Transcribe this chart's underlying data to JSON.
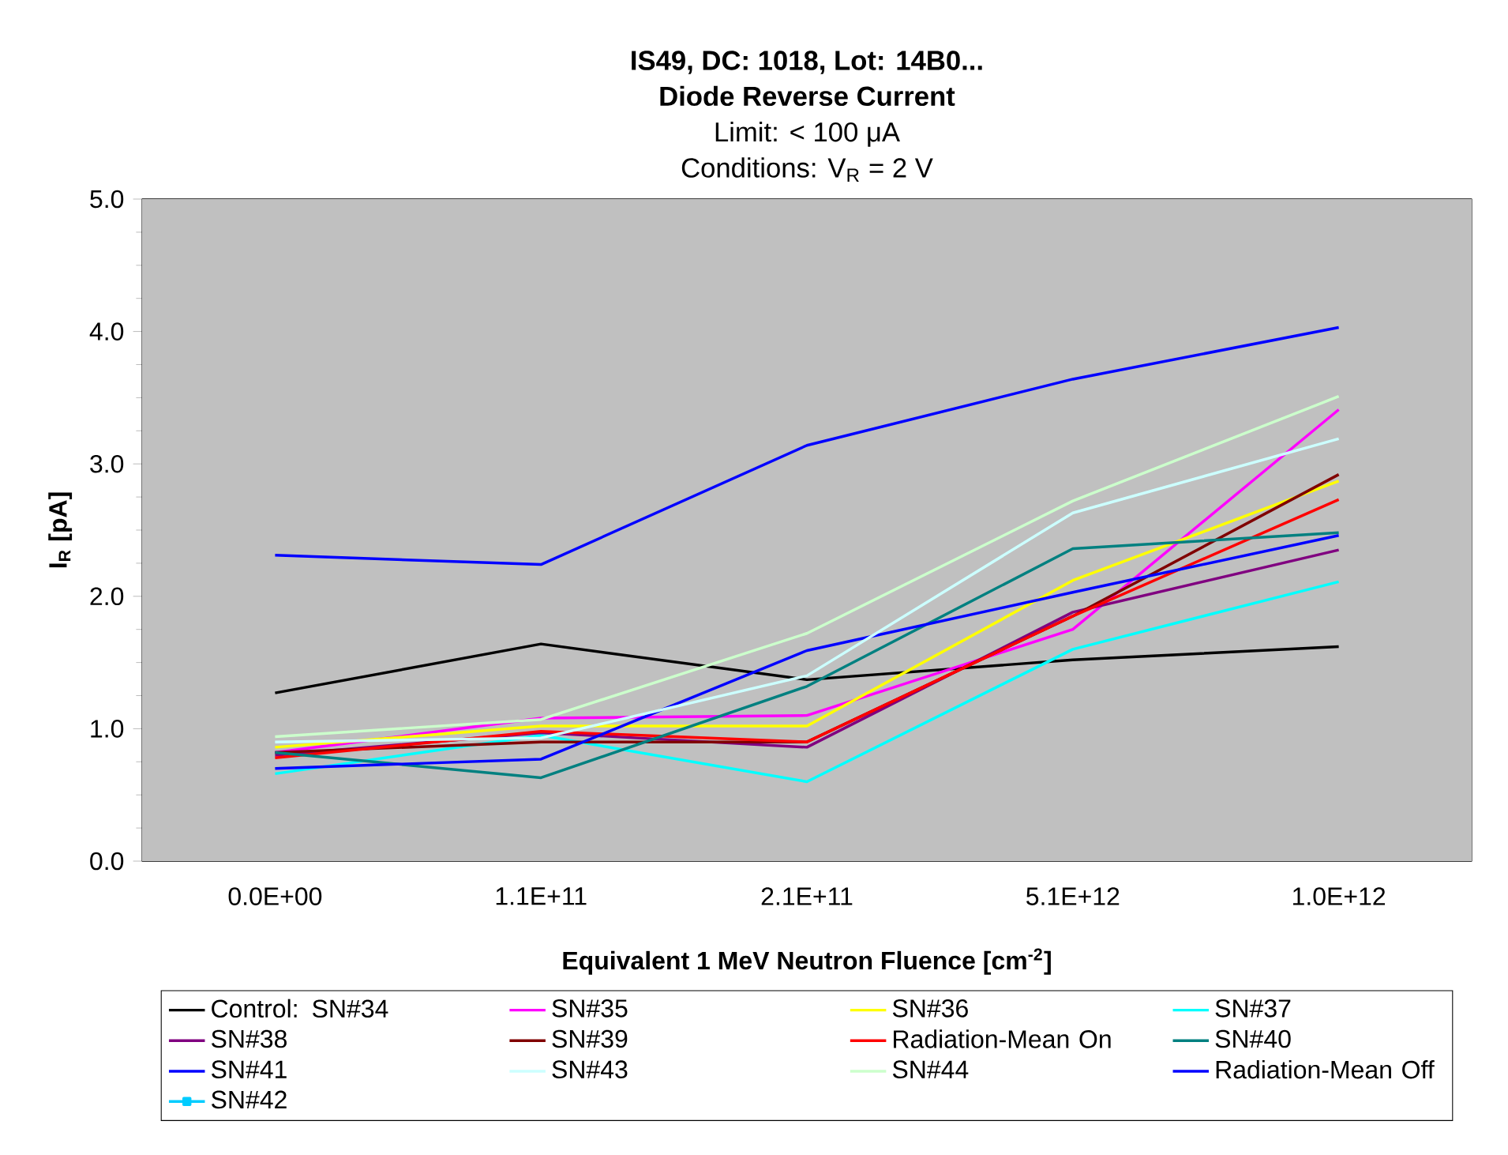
{
  "chart_data": {
    "type": "line",
    "title": "IS49, DC: 1018, Lot: 14B0...",
    "subtitle": "Diode Reverse Current",
    "annotations": [
      "Limit: < 100 μA",
      "Conditions: V$_{R}$ = 2 V"
    ],
    "xlabel": "Equivalent 1 MeV Neutron Fluence [cm$^{-2}$]",
    "ylabel": "I$_{R}$ [pA]",
    "categories": [
      "0.0E+00",
      "1.1E+11",
      "2.1E+11",
      "5.1E+12",
      "1.0E+12"
    ],
    "ylim": [
      0,
      5
    ],
    "yticks": [
      {
        "value": 0,
        "label": "0.0"
      },
      {
        "value": 1,
        "label": "1.0"
      },
      {
        "value": 2,
        "label": "2.0"
      },
      {
        "value": 3,
        "label": "3.0"
      },
      {
        "value": 4,
        "label": "4.0"
      },
      {
        "value": 5,
        "label": "5.0"
      }
    ],
    "grid": "y",
    "legend": "bottom",
    "marker": "none",
    "series": [
      {
        "name": "Control: SN#34",
        "color": "#000000",
        "values": [
          1.27,
          1.64,
          1.37,
          1.52,
          1.62
        ]
      },
      {
        "name": "SN#35",
        "color": "#ff00ff",
        "values": [
          0.82,
          1.08,
          1.1,
          1.75,
          3.41
        ]
      },
      {
        "name": "SN#36",
        "color": "#ffff00",
        "values": [
          0.86,
          1.02,
          1.02,
          2.12,
          2.87
        ]
      },
      {
        "name": "SN#37",
        "color": "#00ffff",
        "values": [
          0.66,
          0.95,
          0.6,
          1.6,
          2.11
        ]
      },
      {
        "name": "SN#38",
        "color": "#800080",
        "values": [
          0.8,
          0.97,
          0.86,
          1.88,
          2.35
        ]
      },
      {
        "name": "SN#39",
        "color": "#800000",
        "values": [
          0.82,
          0.9,
          0.9,
          1.85,
          2.92
        ]
      },
      {
        "name": "Radiation-Mean On",
        "color": "#ff0000",
        "values": [
          0.78,
          0.98,
          0.9,
          1.85,
          2.73
        ]
      },
      {
        "name": "SN#40",
        "color": "#008080",
        "values": [
          0.82,
          0.63,
          1.32,
          2.36,
          2.48
        ]
      },
      {
        "name": "SN#41",
        "color": "#0000ff",
        "values": [
          0.7,
          0.77,
          1.59,
          2.03,
          2.46
        ]
      },
      {
        "name": "SN#43",
        "color": "#ccffff",
        "values": [
          0.9,
          0.93,
          1.4,
          2.63,
          3.19
        ]
      },
      {
        "name": "SN#44",
        "color": "#ccffcc",
        "values": [
          0.94,
          1.07,
          1.72,
          2.72,
          3.51
        ]
      },
      {
        "name": "Radiation-Mean Off",
        "color": "#0000ff",
        "values": [
          2.31,
          2.24,
          3.14,
          3.64,
          4.03
        ]
      },
      {
        "name": "SN#42",
        "color": "#00ccff",
        "marker": "square",
        "values": [
          null,
          null,
          null,
          null,
          null
        ]
      }
    ]
  }
}
